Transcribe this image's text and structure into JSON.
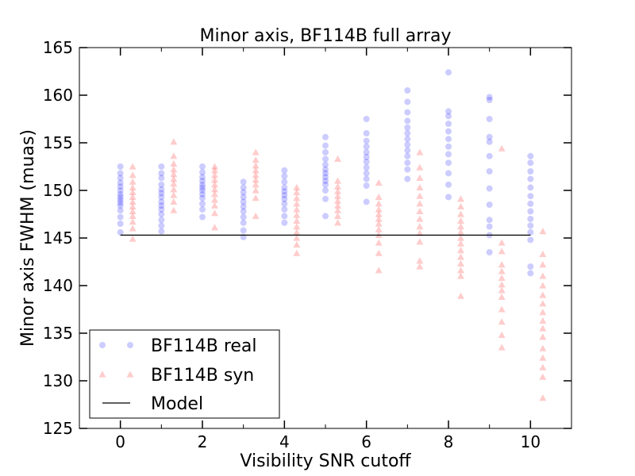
{
  "chart_data": {
    "type": "scatter",
    "title": "Minor axis, BF114B full array",
    "xlabel": "Visibility SNR cutoff",
    "ylabel": "Minor axis FWHM (muas)",
    "xlim": [
      -1,
      11
    ],
    "ylim": [
      125,
      165
    ],
    "xticks": [
      0,
      2,
      4,
      6,
      8,
      10
    ],
    "yticks": [
      125,
      130,
      135,
      140,
      145,
      150,
      155,
      160,
      165
    ],
    "legend_position": "lower-left",
    "series": [
      {
        "name": "BF114B real",
        "marker": "circle",
        "color": "#0000ff",
        "x_offset": 0,
        "groups": [
          {
            "x": 0,
            "y": [
              145.6,
              146.5,
              147.2,
              147.9,
              148.4,
              148.7,
              149.0,
              149.3,
              149.6,
              150.0,
              150.4,
              150.8,
              151.3,
              151.8,
              152.5
            ]
          },
          {
            "x": 1,
            "y": [
              145.7,
              146.3,
              146.9,
              147.5,
              148.0,
              148.4,
              148.8,
              149.3,
              149.7,
              150.1,
              150.6,
              151.3,
              151.8,
              152.5
            ]
          },
          {
            "x": 2,
            "y": [
              147.2,
              148.0,
              148.6,
              149.2,
              149.6,
              150.0,
              150.3,
              150.6,
              151.0,
              151.4,
              151.9,
              152.5
            ]
          },
          {
            "x": 3,
            "y": [
              145.1,
              145.8,
              146.6,
              147.2,
              147.8,
              148.3,
              148.8,
              149.3,
              149.8,
              150.3,
              150.9
            ]
          },
          {
            "x": 4,
            "y": [
              146.6,
              147.3,
              148.0,
              148.6,
              149.1,
              149.5,
              149.9,
              150.3,
              150.9,
              151.5,
              152.1
            ]
          },
          {
            "x": 5,
            "y": [
              147.3,
              149.1,
              150.0,
              150.6,
              151.0,
              151.4,
              151.8,
              152.2,
              152.7,
              153.3,
              154.0,
              154.7,
              155.6
            ]
          },
          {
            "x": 6,
            "y": [
              148.8,
              150.5,
              151.2,
              151.8,
              152.4,
              153.0,
              153.5,
              154.0,
              154.6,
              155.2,
              156.0,
              157.5
            ]
          },
          {
            "x": 7,
            "y": [
              151.2,
              152.2,
              152.9,
              153.6,
              154.2,
              154.8,
              155.4,
              156.0,
              156.6,
              157.3,
              158.2,
              159.3,
              160.5
            ]
          },
          {
            "x": 8,
            "y": [
              149.3,
              150.6,
              151.8,
              152.9,
              153.8,
              154.6,
              155.4,
              156.2,
              157.0,
              157.8,
              158.3,
              162.4
            ]
          },
          {
            "x": 9,
            "y": [
              143.5,
              145.3,
              146.2,
              146.9,
              148.5,
              150.2,
              152.0,
              153.6,
              155.1,
              155.6,
              157.5,
              159.5,
              159.8
            ]
          },
          {
            "x": 10,
            "y": [
              141.3,
              142.0,
              144.8,
              145.6,
              146.3,
              147.0,
              147.8,
              148.6,
              149.4,
              150.3,
              151.2,
              152.0,
              152.9,
              153.6
            ]
          }
        ]
      },
      {
        "name": "BF114B syn",
        "marker": "triangle",
        "color": "#ff0000",
        "x_offset": 0.3,
        "groups": [
          {
            "x": 0,
            "y": [
              144.9,
              146.0,
              146.7,
              147.3,
              147.8,
              148.3,
              148.8,
              149.3,
              149.8,
              150.3,
              150.9,
              151.6,
              152.5
            ]
          },
          {
            "x": 1,
            "y": [
              147.9,
              148.8,
              149.5,
              150.1,
              150.7,
              151.2,
              151.7,
              152.2,
              152.8,
              153.6,
              155.1
            ]
          },
          {
            "x": 2,
            "y": [
              146.1,
              147.6,
              148.4,
              149.0,
              149.6,
              150.1,
              150.6,
              151.1,
              151.6,
              152.1,
              152.5
            ]
          },
          {
            "x": 3,
            "y": [
              147.3,
              149.2,
              150.0,
              150.6,
              151.1,
              151.6,
              152.1,
              152.6,
              153.2,
              154.0
            ]
          },
          {
            "x": 4,
            "y": [
              143.4,
              144.3,
              145.0,
              145.6,
              146.2,
              146.8,
              147.4,
              148.0,
              148.6,
              149.2,
              149.8,
              150.3
            ]
          },
          {
            "x": 5,
            "y": [
              146.6,
              147.3,
              147.9,
              148.4,
              148.9,
              149.4,
              149.9,
              150.4,
              151.0,
              153.3
            ]
          },
          {
            "x": 6,
            "y": [
              141.6,
              143.4,
              144.5,
              145.3,
              145.9,
              146.5,
              147.0,
              147.5,
              148.0,
              148.6,
              149.3,
              150.8
            ]
          },
          {
            "x": 7,
            "y": [
              142.0,
              142.6,
              144.6,
              145.5,
              146.2,
              147.0,
              147.8,
              148.6,
              149.4,
              150.3,
              151.3,
              152.4,
              154.0
            ]
          },
          {
            "x": 8,
            "y": [
              138.9,
              141.0,
              141.6,
              142.3,
              143.0,
              143.7,
              144.4,
              145.0,
              145.6,
              146.2,
              146.8,
              147.5,
              148.3,
              149.1
            ]
          },
          {
            "x": 9,
            "y": [
              133.5,
              134.8,
              136.2,
              137.5,
              138.8,
              139.5,
              140.1,
              140.8,
              141.5,
              142.2,
              143.6,
              144.5,
              154.4
            ]
          },
          {
            "x": 10,
            "y": [
              128.2,
              130.4,
              131.4,
              132.4,
              133.4,
              134.6,
              135.5,
              136.3,
              137.2,
              138.1,
              139.0,
              140.0,
              141.0,
              142.2,
              143.3,
              145.7
            ]
          }
        ]
      },
      {
        "name": "Model",
        "marker": "line",
        "color": "#000000",
        "x": [
          0,
          10
        ],
        "y": [
          145.3,
          145.3
        ]
      }
    ]
  }
}
